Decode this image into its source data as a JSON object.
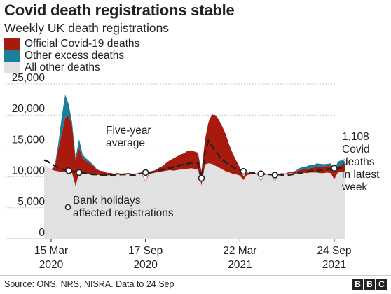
{
  "title": "Covid death registrations stable",
  "subtitle": "Weekly UK death registrations",
  "source": "Source: ONS, NRS, NISRA. Data to 24 Sep",
  "logo": "BBC",
  "colors": {
    "covid": "#a81a0e",
    "other_excess": "#1b7f99",
    "other_deaths": "#e1e1e1",
    "average_line": "#222222",
    "gridline": "#c9c9c9",
    "text": "#222222"
  },
  "legend": [
    {
      "label": "Official Covid-19 deaths",
      "color": "#a81a0e"
    },
    {
      "label": "Other excess deaths",
      "color": "#1b7f99"
    },
    {
      "label": "All other deaths",
      "color": "#e1e1e1"
    }
  ],
  "annotations": {
    "average": [
      "Five-year",
      "average"
    ],
    "bank_holidays": [
      "Bank holidays",
      "affected registrations"
    ],
    "latest": [
      "1,108",
      "Covid",
      "deaths",
      "in latest",
      "week"
    ]
  },
  "chart_data": {
    "type": "area",
    "title": "Covid death registrations stable",
    "subtitle": "Weekly UK death registrations",
    "xlabel": "",
    "ylabel": "",
    "ylim": [
      0,
      25000
    ],
    "yticks": [
      0,
      5000,
      10000,
      15000,
      20000,
      25000
    ],
    "ytick_labels": [
      "0",
      "5,000",
      "10,000",
      "15,000",
      "20,000",
      "25,000"
    ],
    "xticks": [
      {
        "week": 2,
        "label": [
          "15 Mar",
          "2020"
        ]
      },
      {
        "week": 29,
        "label": [
          "17 Sep",
          "2020"
        ]
      },
      {
        "week": 56,
        "label": [
          "22 Mar",
          "2021"
        ]
      },
      {
        "week": 83,
        "label": [
          "24 Sep",
          "2021"
        ]
      }
    ],
    "grid": true,
    "legend_position": "top-left",
    "x_start_week": 0,
    "series": [
      {
        "name": "All other deaths",
        "values": [
          12000,
          11500,
          11200,
          11000,
          10900,
          10800,
          10800,
          10700,
          10600,
          8500,
          10700,
          10500,
          10600,
          10400,
          10500,
          10300,
          10300,
          10300,
          10200,
          10300,
          10200,
          10400,
          10300,
          10400,
          10500,
          10400,
          10400,
          10500,
          10400,
          9200,
          10400,
          10600,
          10700,
          10800,
          10900,
          11000,
          11100,
          11000,
          11100,
          11200,
          11200,
          11300,
          11400,
          11300,
          11300,
          8600,
          12000,
          12200,
          12100,
          11800,
          11500,
          11200,
          10900,
          10700,
          10500,
          10400,
          10200,
          9500,
          10300,
          10400,
          10500,
          10400,
          9300,
          10300,
          10400,
          10300,
          9200,
          10400,
          10500,
          10400,
          10600,
          10600,
          10500,
          10700,
          10700,
          10600,
          10700,
          10700,
          10700,
          10600,
          10600,
          10700,
          10600,
          9600,
          10700,
          10800,
          10900
        ]
      },
      {
        "name": "Official Covid-19 deaths",
        "values": [
          0,
          0,
          50,
          550,
          3500,
          6000,
          8700,
          9300,
          7600,
          4200,
          4000,
          2500,
          2000,
          1800,
          1300,
          900,
          700,
          600,
          450,
          350,
          300,
          250,
          200,
          150,
          150,
          130,
          120,
          120,
          130,
          110,
          200,
          300,
          450,
          700,
          900,
          1300,
          1600,
          2000,
          2200,
          2400,
          2600,
          2900,
          2900,
          2800,
          2600,
          2200,
          4000,
          6600,
          8000,
          8200,
          7700,
          6900,
          5900,
          4400,
          3200,
          2200,
          1300,
          600,
          400,
          250,
          180,
          130,
          120,
          110,
          100,
          90,
          90,
          100,
          110,
          130,
          180,
          220,
          300,
          400,
          500,
          600,
          700,
          800,
          900,
          1000,
          1050,
          1100,
          1100,
          1000,
          1050,
          1100,
          1108
        ]
      },
      {
        "name": "Other excess deaths",
        "values": [
          0,
          0,
          0,
          200,
          800,
          2800,
          3800,
          1800,
          600,
          400,
          1400,
          600,
          400,
          300,
          200,
          100,
          0,
          0,
          0,
          0,
          0,
          0,
          0,
          0,
          0,
          0,
          0,
          0,
          0,
          0,
          0,
          0,
          0,
          0,
          0,
          0,
          0,
          0,
          0,
          0,
          0,
          0,
          0,
          0,
          0,
          0,
          0,
          0,
          0,
          0,
          0,
          0,
          0,
          0,
          0,
          0,
          0,
          0,
          0,
          0,
          0,
          0,
          0,
          0,
          0,
          0,
          0,
          0,
          0,
          0,
          0,
          0,
          200,
          300,
          400,
          500,
          500,
          400,
          600,
          500,
          400,
          300,
          500,
          300,
          700,
          800,
          500
        ]
      },
      {
        "name": "Five-year average",
        "values": [
          12700,
          12500,
          12100,
          11800,
          11500,
          11300,
          11100,
          11000,
          10900,
          10800,
          10700,
          10600,
          10600,
          10500,
          10400,
          10400,
          10300,
          10300,
          10200,
          10300,
          10200,
          10300,
          10400,
          10400,
          10400,
          10300,
          10300,
          10500,
          10600,
          10700,
          10700,
          10800,
          10900,
          11100,
          11200,
          11300,
          11400,
          11600,
          11700,
          11900,
          12000,
          12100,
          12300,
          12300,
          12200,
          9800,
          14000,
          15800,
          15000,
          14200,
          13400,
          12800,
          12300,
          11900,
          11600,
          11300,
          11100,
          10900,
          10800,
          10700,
          10600,
          10600,
          10500,
          10500,
          10400,
          10400,
          10300,
          10400,
          10300,
          10300,
          10300,
          10400,
          10500,
          10600,
          10700,
          10800,
          10900,
          11000,
          11000,
          11100,
          11200,
          11200,
          11300,
          11400,
          11400,
          11500,
          11500
        ]
      }
    ],
    "bank_holiday_weeks": [
      7,
      10,
      29,
      45,
      57,
      62,
      66,
      83
    ]
  }
}
